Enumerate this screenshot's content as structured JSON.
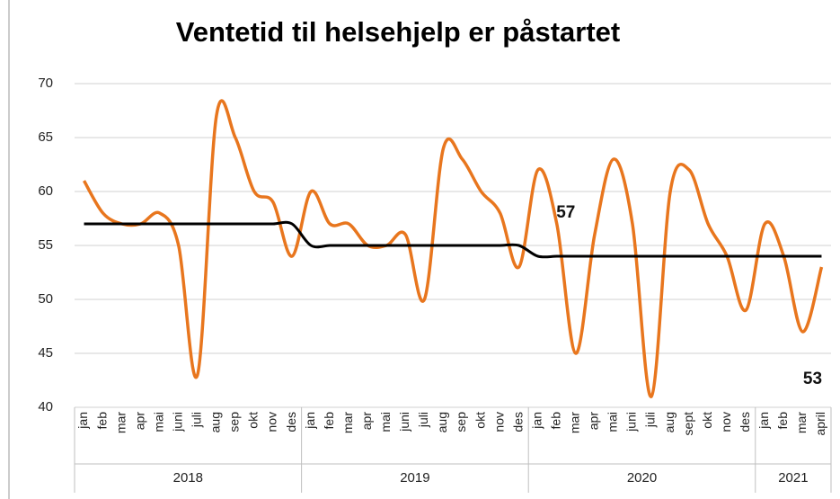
{
  "chart_data": {
    "type": "line",
    "title": "Ventetid til helsehjelp er påstartet",
    "groups": [
      {
        "label": "2018",
        "categories": [
          "jan",
          "feb",
          "mar",
          "apr",
          "mai",
          "juni",
          "juli",
          "aug",
          "sep",
          "okt",
          "nov",
          "des"
        ]
      },
      {
        "label": "2019",
        "categories": [
          "jan",
          "feb",
          "mar",
          "apr",
          "mai",
          "juni",
          "juli",
          "aug",
          "sep",
          "okt",
          "nov",
          "des"
        ]
      },
      {
        "label": "2020",
        "categories": [
          "jan",
          "feb",
          "mar",
          "apr",
          "mai",
          "juni",
          "juli",
          "aug",
          "sept",
          "okt",
          "nov",
          "des"
        ]
      },
      {
        "label": "2021",
        "categories": [
          "jan",
          "feb",
          "mar",
          "april"
        ]
      }
    ],
    "series": [
      {
        "color": "#e8761e",
        "smooth": true,
        "values": [
          61,
          58,
          57,
          57,
          58,
          55,
          43,
          67,
          65,
          60,
          59,
          54,
          60,
          57,
          57,
          55,
          55,
          56,
          50,
          64,
          63,
          60,
          58,
          53,
          62,
          57,
          45,
          56,
          63,
          57,
          41,
          60,
          62,
          57,
          54,
          49,
          57,
          54,
          47,
          53
        ],
        "value_labels": [
          null,
          null,
          null,
          null,
          null,
          null,
          null,
          null,
          null,
          null,
          null,
          null,
          null,
          null,
          null,
          null,
          null,
          null,
          null,
          null,
          null,
          null,
          null,
          null,
          null,
          "57",
          null,
          null,
          null,
          null,
          null,
          null,
          null,
          null,
          null,
          null,
          null,
          null,
          null,
          "53"
        ]
      },
      {
        "color": "#000000",
        "smooth": true,
        "values": [
          57,
          57,
          57,
          57,
          57,
          57,
          57,
          57,
          57,
          57,
          57,
          57,
          55,
          55,
          55,
          55,
          55,
          55,
          55,
          55,
          55,
          55,
          55,
          55,
          54,
          54,
          54,
          54,
          54,
          54,
          54,
          54,
          54,
          54,
          54,
          54,
          54,
          54,
          54,
          54
        ]
      }
    ],
    "ylim": [
      40,
      70
    ],
    "yticks": [
      40,
      45,
      50,
      55,
      60,
      65,
      70
    ],
    "grid": true
  }
}
